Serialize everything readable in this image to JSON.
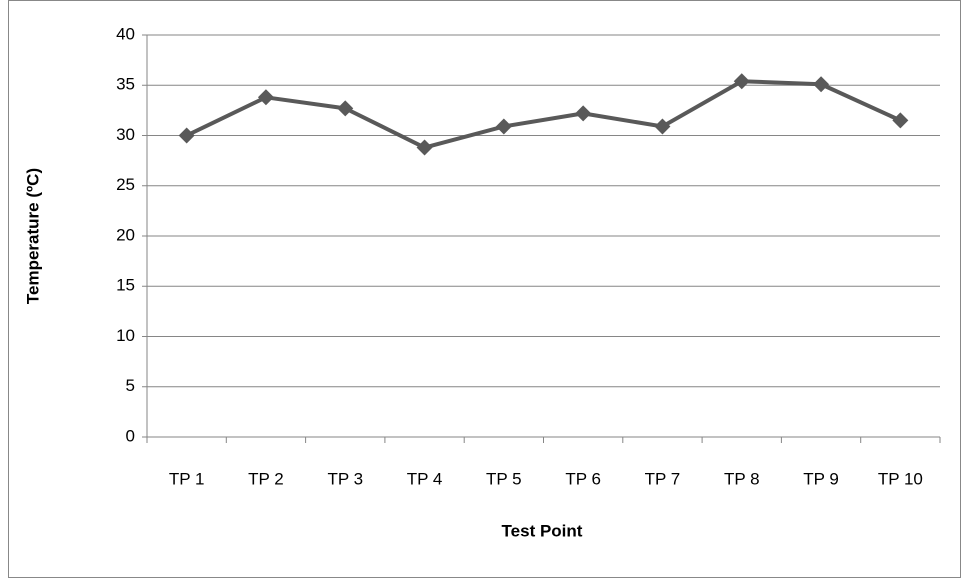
{
  "chart_data": {
    "type": "line",
    "x_label": "Test Point",
    "y_label": "Temperature (ºC)",
    "categories": [
      "TP 1",
      "TP 2",
      "TP 3",
      "TP 4",
      "TP 5",
      "TP 6",
      "TP 7",
      "TP 8",
      "TP 9",
      "TP 10"
    ],
    "series": [
      {
        "name": "Temperature",
        "color": "#595959",
        "values": [
          30,
          33.8,
          32.7,
          28.8,
          30.9,
          32.2,
          30.9,
          35.4,
          35.1,
          31.5
        ]
      }
    ],
    "ylim": [
      0,
      40
    ],
    "yticks": [
      0,
      5,
      10,
      15,
      20,
      25,
      30,
      35,
      40
    ],
    "grid": true
  }
}
